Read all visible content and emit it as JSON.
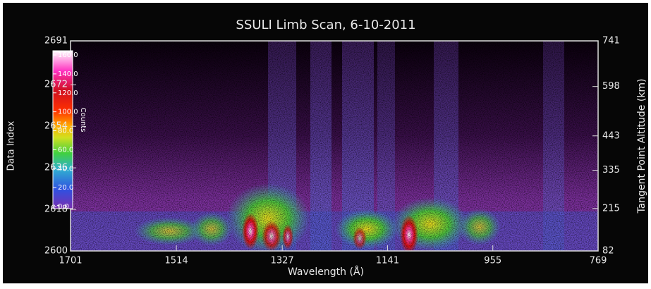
{
  "chart_data": {
    "type": "heatmap",
    "title": "SSULI Limb Scan, 6-10-2011",
    "x_label": "Wavelength (Å)",
    "y_label": "Data Index",
    "y2_label": "Tangent Point Altitude (km)",
    "colorbar_label": "Counts",
    "xlim": [
      1701,
      769
    ],
    "xticks": [
      1701,
      1514,
      1327,
      1141,
      955,
      769
    ],
    "ylim": [
      2600,
      2691
    ],
    "yticks": [
      2600,
      2618,
      2636,
      2654,
      2672,
      2691
    ],
    "y2lim": [
      82,
      741
    ],
    "y2ticks": [
      82,
      215,
      335,
      443,
      598,
      741
    ],
    "clim": [
      0,
      160
    ],
    "cticks": [
      {
        "value": 0,
        "label": "0.0"
      },
      {
        "value": 20,
        "label": "20.0"
      },
      {
        "value": 40,
        "label": "40.0"
      },
      {
        "value": 60,
        "label": "60.0"
      },
      {
        "value": 80,
        "label": "80.0"
      },
      {
        "value": 100,
        "label": "100.0"
      },
      {
        "value": 120,
        "label": "120.0"
      },
      {
        "value": 140,
        "label": "140.0"
      },
      {
        "value": 160,
        "label": "160.0"
      }
    ]
  }
}
